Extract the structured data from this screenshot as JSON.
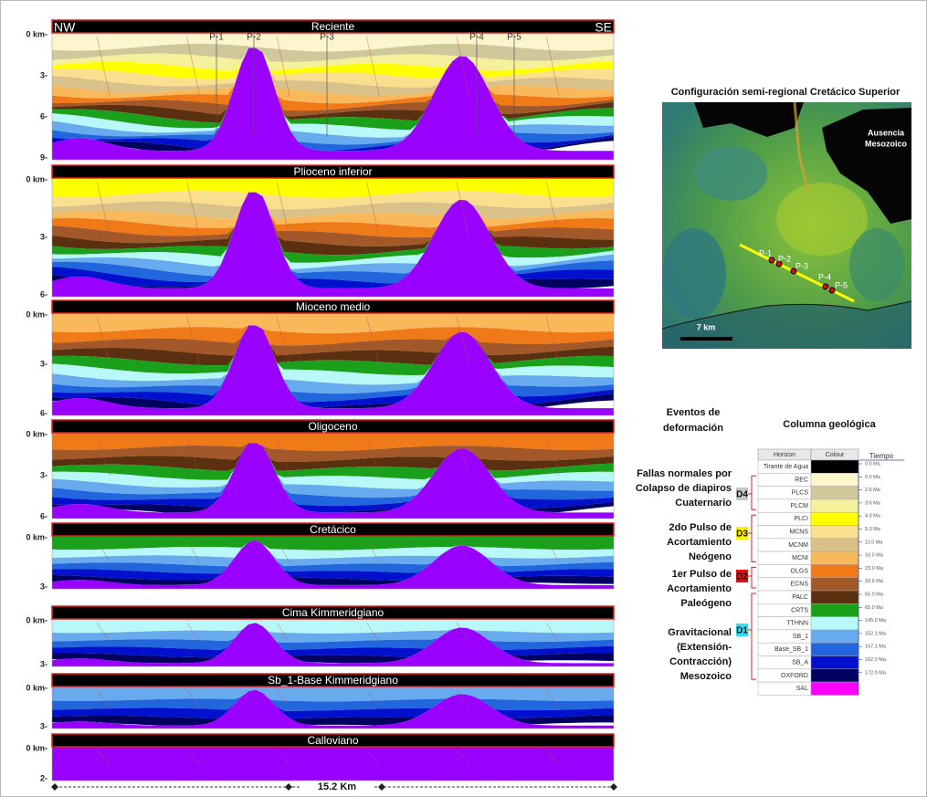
{
  "sections": {
    "left_label": "NW",
    "right_label": "SE",
    "wells": [
      "P-1",
      "P-2",
      "P-3",
      "P-4",
      "P-5"
    ],
    "panels": [
      {
        "title": "Reciente",
        "depth_labels": [
          "0 km-",
          "3-",
          "6-",
          "9-"
        ]
      },
      {
        "title": "Plioceno inferior",
        "depth_labels": [
          "0 km-",
          "3-",
          "6-"
        ]
      },
      {
        "title": "Mioceno medio",
        "depth_labels": [
          "0 km-",
          "3-",
          "6-"
        ]
      },
      {
        "title": "Oligoceno",
        "depth_labels": [
          "0 km-",
          "3-",
          "6-"
        ]
      },
      {
        "title": "Cretácico",
        "depth_labels": [
          "0 km-",
          "3-"
        ]
      },
      {
        "title": "Cima Kimmeridgiano",
        "depth_labels": [
          "0 km-",
          "3-"
        ]
      },
      {
        "title": "Sb_1-Base Kimmeridgiano",
        "depth_labels": [
          "0 km-",
          "3-"
        ]
      },
      {
        "title": "Calloviano",
        "depth_labels": [
          "0 km-",
          "2-"
        ]
      }
    ],
    "scale": "15.2 Km"
  },
  "map": {
    "title": "Configuración semi-regional Cretácico Superior",
    "label": [
      "Ausencia",
      "Mesozoico"
    ],
    "scale": "7 km",
    "wells": [
      "P-1",
      "P-2",
      "P-3",
      "P-4",
      "P-5"
    ]
  },
  "events": {
    "title": [
      "Eventos de",
      "deformación"
    ],
    "items": [
      {
        "code": "D4",
        "color": "#c8c8c8",
        "lines": [
          "Fallas normales por",
          "Colapso de diapiros",
          "Cuaternario"
        ]
      },
      {
        "code": "D3",
        "color": "#ffee00",
        "lines": [
          "2do Pulso de",
          "Acortamiento",
          "Neógeno"
        ]
      },
      {
        "code": "D2",
        "color": "#e01010",
        "lines": [
          "1er Pulso de",
          "Acortamiento",
          "Paleógeno"
        ]
      },
      {
        "code": "D1",
        "color": "#30e0f0",
        "lines": [
          "Gravitacional",
          "(Extensión-",
          "Contracción)",
          "Mesozoico"
        ]
      }
    ]
  },
  "column": {
    "title": "Columna geológica",
    "headers": [
      "Horizon",
      "Colour",
      "Tiempo"
    ],
    "rows": [
      {
        "name": "Tirante de Agua",
        "color": "#000000"
      },
      {
        "name": "REC",
        "color": "#fdf6cc"
      },
      {
        "name": "PLCS",
        "color": "#cfc89a"
      },
      {
        "name": "PLCM",
        "color": "#f4f19a"
      },
      {
        "name": "PLCI",
        "color": "#ffff00"
      },
      {
        "name": "MCNS",
        "color": "#f9df8e"
      },
      {
        "name": "MCNM",
        "color": "#d9c18a"
      },
      {
        "name": "MCNI",
        "color": "#f9b85a"
      },
      {
        "name": "OLGS",
        "color": "#f07a18"
      },
      {
        "name": "ECNS",
        "color": "#a3582a"
      },
      {
        "name": "PALC",
        "color": "#5a3010"
      },
      {
        "name": "CRTS",
        "color": "#1aa01a"
      },
      {
        "name": "TTHNN",
        "color": "#b8f8f8"
      },
      {
        "name": "SB_1",
        "color": "#68aaee"
      },
      {
        "name": "Base_SB_1",
        "color": "#2266dd"
      },
      {
        "name": "SB_A",
        "color": "#0010cc"
      },
      {
        "name": "OXFORD",
        "color": "#000060"
      },
      {
        "name": "SAL",
        "color": "#ff00ff"
      }
    ],
    "ages": [
      "0.0 Ma",
      "0.0 Ma",
      "2.6 Ma",
      "3.6 Ma",
      "4.0 Ma",
      "5.3 Ma",
      "11.0 Ma",
      "16.0 Ma",
      "23.0 Ma",
      "33.9 Ma",
      "55.0 Ma",
      "65.0 Ma",
      "145.0 Ma",
      "152.1 Ma",
      "157.1 Ma",
      "162.0 Ma",
      "172.0 Ma"
    ]
  }
}
